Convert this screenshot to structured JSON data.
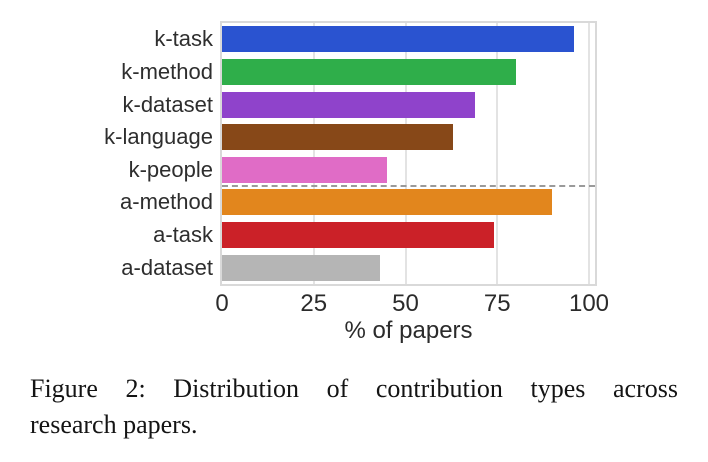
{
  "figure": {
    "caption_line1": "Figure 2: Distribution of contribution types across",
    "caption_line2": "research papers."
  },
  "chart_data": {
    "type": "bar",
    "orientation": "horizontal",
    "title": "",
    "xlabel": "% of papers",
    "ylabel": "",
    "categories": [
      "k-task",
      "k-method",
      "k-dataset",
      "k-language",
      "k-people",
      "a-method",
      "a-task",
      "a-dataset"
    ],
    "values": [
      96,
      80,
      69,
      63,
      45,
      90,
      74,
      43
    ],
    "bar_colors": [
      "#2a53d0",
      "#2fae4a",
      "#8f43cb",
      "#874818",
      "#e06cc6",
      "#e2861d",
      "#cb2128",
      "#b5b5b5"
    ],
    "x_ticks": [
      0,
      25,
      50,
      75,
      100
    ],
    "xlim": [
      0,
      101.6
    ],
    "grid": true,
    "legend": "none",
    "separator_after_index": 4,
    "separator_style": "dashed"
  },
  "colors": {
    "grid": "#e3e3e3",
    "plot_border": "#d9d9d9",
    "separator": "#9a9a9a",
    "tick_label": "#2b2b2b",
    "category_label": "#2e2e2e",
    "caption_text": "#141414",
    "background": "#ffffff"
  }
}
